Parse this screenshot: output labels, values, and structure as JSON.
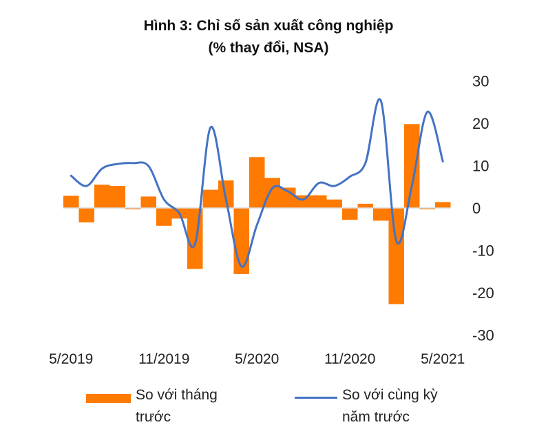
{
  "chart_data": {
    "type": "bar+line",
    "title": "Hình 3: Chỉ số sản xuất công nghiệp",
    "subtitle": "(% thay đổi, NSA)",
    "xlabel": "",
    "ylabel": "",
    "ylim": [
      -30,
      30
    ],
    "yticks": [
      30,
      20,
      10,
      0,
      -10,
      -20,
      -30
    ],
    "xtick_labels": [
      "5/2019",
      "11/2019",
      "5/2020",
      "11/2020",
      "5/2021"
    ],
    "categories": [
      "5/2019",
      "6/2019",
      "7/2019",
      "8/2019",
      "9/2019",
      "10/2019",
      "11/2019",
      "12/2019",
      "1/2020",
      "2/2020",
      "3/2020",
      "4/2020",
      "5/2020",
      "6/2020",
      "7/2020",
      "8/2020",
      "9/2020",
      "10/2020",
      "11/2020",
      "12/2020",
      "1/2021",
      "2/2021",
      "3/2021",
      "4/2021",
      "5/2021"
    ],
    "grid": false,
    "legend_position": "bottom",
    "series": [
      {
        "name": "So với tháng trước",
        "type": "bar",
        "color": "#FF7A00",
        "values": [
          2.9,
          -3.4,
          5.5,
          5.2,
          -0.3,
          2.7,
          -4.2,
          -2.5,
          -14.4,
          4.3,
          6.5,
          -15.6,
          12.0,
          7.1,
          4.8,
          3.0,
          3.0,
          2.0,
          -2.8,
          1.0,
          -3.0,
          -22.7,
          19.8,
          -0.3,
          1.4
        ]
      },
      {
        "name": "So với cùng kỳ năm trước",
        "type": "line",
        "color": "#4472C4",
        "values": [
          7.6,
          5.2,
          9.3,
          10.4,
          10.6,
          9.9,
          2.0,
          -1.3,
          -8.5,
          19.0,
          2.0,
          -13.8,
          -4.0,
          4.7,
          3.9,
          2.0,
          5.9,
          5.2,
          7.4,
          10.6,
          25.3,
          -7.8,
          5.2,
          22.7,
          11.0
        ]
      }
    ]
  },
  "legend": {
    "bar_label_line1": "So với tháng",
    "bar_label_line2": "trước",
    "line_label_line1": "So với cùng kỳ",
    "line_label_line2": "năm trước"
  }
}
